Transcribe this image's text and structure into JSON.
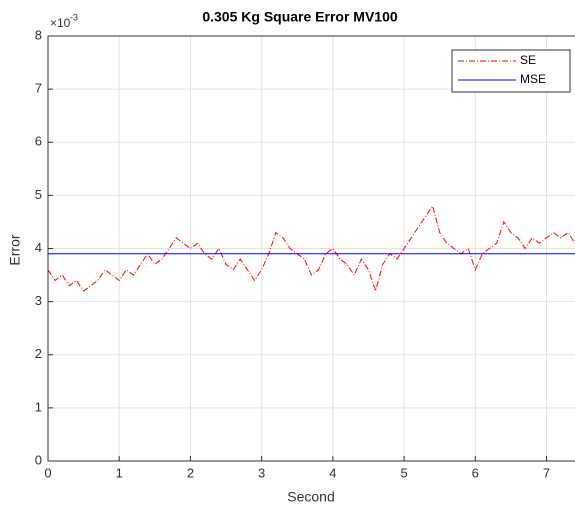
{
  "chart_data": {
    "type": "line",
    "title": "0.305 Kg Square Error MV100",
    "xlabel": "Second",
    "ylabel": "Error",
    "exponent_base": "×10",
    "exponent_power": "-3",
    "xlim": [
      0,
      7.4
    ],
    "ylim": [
      0,
      8
    ],
    "xticks": [
      0,
      1,
      2,
      3,
      4,
      5,
      6,
      7
    ],
    "yticks": [
      0,
      1,
      2,
      3,
      4,
      5,
      6,
      7,
      8
    ],
    "grid": true,
    "legend": "northeast",
    "series": [
      {
        "name": "SE",
        "color": "#ff0000",
        "style": "dashdot",
        "x": [
          0,
          0.1,
          0.2,
          0.3,
          0.4,
          0.5,
          0.6,
          0.7,
          0.8,
          0.9,
          1.0,
          1.1,
          1.2,
          1.3,
          1.4,
          1.5,
          1.6,
          1.7,
          1.8,
          1.9,
          2.0,
          2.1,
          2.2,
          2.3,
          2.4,
          2.5,
          2.6,
          2.7,
          2.8,
          2.9,
          3.0,
          3.1,
          3.2,
          3.3,
          3.4,
          3.5,
          3.6,
          3.7,
          3.8,
          3.9,
          4.0,
          4.1,
          4.2,
          4.3,
          4.4,
          4.5,
          4.6,
          4.7,
          4.8,
          4.9,
          5.0,
          5.1,
          5.2,
          5.3,
          5.4,
          5.5,
          5.6,
          5.7,
          5.8,
          5.9,
          6.0,
          6.1,
          6.2,
          6.3,
          6.4,
          6.5,
          6.6,
          6.7,
          6.8,
          6.9,
          7.0,
          7.1,
          7.2,
          7.3,
          7.4
        ],
        "values": [
          3.6,
          3.4,
          3.5,
          3.3,
          3.4,
          3.2,
          3.3,
          3.4,
          3.6,
          3.5,
          3.4,
          3.6,
          3.5,
          3.7,
          3.9,
          3.7,
          3.8,
          4.0,
          4.2,
          4.1,
          4.0,
          4.1,
          3.9,
          3.8,
          4.0,
          3.7,
          3.6,
          3.8,
          3.6,
          3.4,
          3.6,
          3.9,
          4.3,
          4.2,
          4.0,
          3.9,
          3.8,
          3.5,
          3.6,
          3.9,
          4.0,
          3.8,
          3.7,
          3.5,
          3.8,
          3.6,
          3.2,
          3.7,
          3.9,
          3.8,
          4.0,
          4.2,
          4.4,
          4.6,
          4.8,
          4.3,
          4.1,
          4.0,
          3.9,
          4.0,
          3.6,
          3.9,
          4.0,
          4.1,
          4.5,
          4.3,
          4.2,
          4.0,
          4.2,
          4.1,
          4.2,
          4.3,
          4.2,
          4.3,
          4.1
        ]
      },
      {
        "name": "MSE",
        "color": "#0000ff",
        "style": "solid",
        "x": [
          0,
          7.4
        ],
        "values": [
          3.9,
          3.9
        ]
      }
    ]
  }
}
